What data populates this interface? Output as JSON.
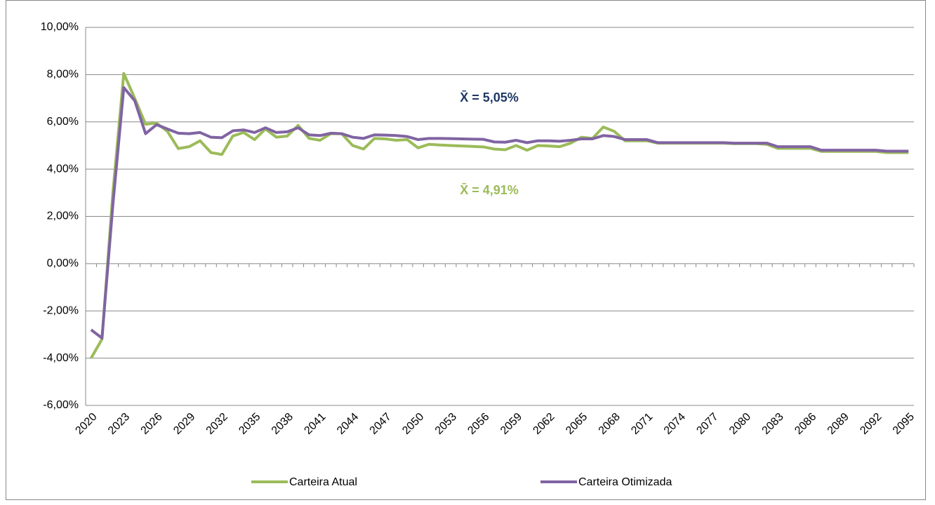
{
  "chart_data": {
    "type": "line",
    "categories": [
      "2020",
      null,
      null,
      "2023",
      null,
      null,
      "2026",
      null,
      null,
      "2029",
      null,
      null,
      "2032",
      null,
      null,
      "2035",
      null,
      null,
      "2038",
      null,
      null,
      "2041",
      null,
      null,
      "2044",
      null,
      null,
      "2047",
      null,
      null,
      "2050",
      null,
      null,
      "2053",
      null,
      null,
      "2056",
      null,
      null,
      "2059",
      null,
      null,
      "2062",
      null,
      null,
      "2065",
      null,
      null,
      "2068",
      null,
      null,
      "2071",
      null,
      null,
      "2074",
      null,
      null,
      "2077",
      null,
      null,
      "2080",
      null,
      null,
      "2083",
      null,
      null,
      "2086",
      null,
      null,
      "2089",
      null,
      null,
      "2092",
      null,
      null,
      "2095"
    ],
    "series": [
      {
        "name": "Carteira Atual",
        "color": "#9bbb59",
        "values": [
          -4.0,
          -3.2,
          3.0,
          8.05,
          7.0,
          5.9,
          5.95,
          5.6,
          4.87,
          4.95,
          5.2,
          4.7,
          4.62,
          5.4,
          5.55,
          5.25,
          5.7,
          5.35,
          5.4,
          5.85,
          5.3,
          5.22,
          5.5,
          5.5,
          5.0,
          4.85,
          5.3,
          5.28,
          5.22,
          5.25,
          4.9,
          5.05,
          5.02,
          5.0,
          4.98,
          4.96,
          4.94,
          4.85,
          4.82,
          5.0,
          4.8,
          5.0,
          4.98,
          4.95,
          5.1,
          5.35,
          5.3,
          5.78,
          5.6,
          5.2,
          5.2,
          5.2,
          5.1,
          5.1,
          5.1,
          5.1,
          5.1,
          5.1,
          5.1,
          5.08,
          5.08,
          5.08,
          5.05,
          4.88,
          4.88,
          4.88,
          4.88,
          4.75,
          4.75,
          4.75,
          4.75,
          4.75,
          4.75,
          4.7,
          4.7,
          4.7
        ]
      },
      {
        "name": "Carteira Otimizada",
        "color": "#8064a2",
        "values": [
          -2.8,
          -3.15,
          2.5,
          7.45,
          6.9,
          5.5,
          5.88,
          5.7,
          5.52,
          5.5,
          5.55,
          5.35,
          5.33,
          5.62,
          5.66,
          5.55,
          5.75,
          5.55,
          5.58,
          5.75,
          5.45,
          5.42,
          5.52,
          5.5,
          5.35,
          5.3,
          5.45,
          5.44,
          5.42,
          5.38,
          5.25,
          5.3,
          5.3,
          5.29,
          5.28,
          5.27,
          5.26,
          5.15,
          5.14,
          5.22,
          5.12,
          5.2,
          5.2,
          5.18,
          5.22,
          5.28,
          5.28,
          5.42,
          5.38,
          5.25,
          5.25,
          5.25,
          5.12,
          5.12,
          5.12,
          5.12,
          5.12,
          5.12,
          5.12,
          5.1,
          5.1,
          5.1,
          5.1,
          4.95,
          4.95,
          4.95,
          4.95,
          4.8,
          4.8,
          4.8,
          4.8,
          4.8,
          4.8,
          4.76,
          4.76,
          4.76
        ]
      }
    ],
    "ylim": [
      -6,
      10
    ],
    "yticks": [
      {
        "value": -6,
        "label": "-6,00%"
      },
      {
        "value": -4,
        "label": "-4,00%"
      },
      {
        "value": -2,
        "label": "-2,00%"
      },
      {
        "value": 0,
        "label": "0,00%"
      },
      {
        "value": 2,
        "label": "2,00%"
      },
      {
        "value": 4,
        "label": "4,00%"
      },
      {
        "value": 6,
        "label": "6,00%"
      },
      {
        "value": 8,
        "label": "8,00%"
      },
      {
        "value": 10,
        "label": "10,00%"
      }
    ],
    "grid": true,
    "legend": "bottom",
    "annotations": [
      {
        "text": "X̄ = 5,05%",
        "color": "#1f3864"
      },
      {
        "text": "X̄ = 4,91%",
        "color": "#9bbb59"
      }
    ]
  }
}
